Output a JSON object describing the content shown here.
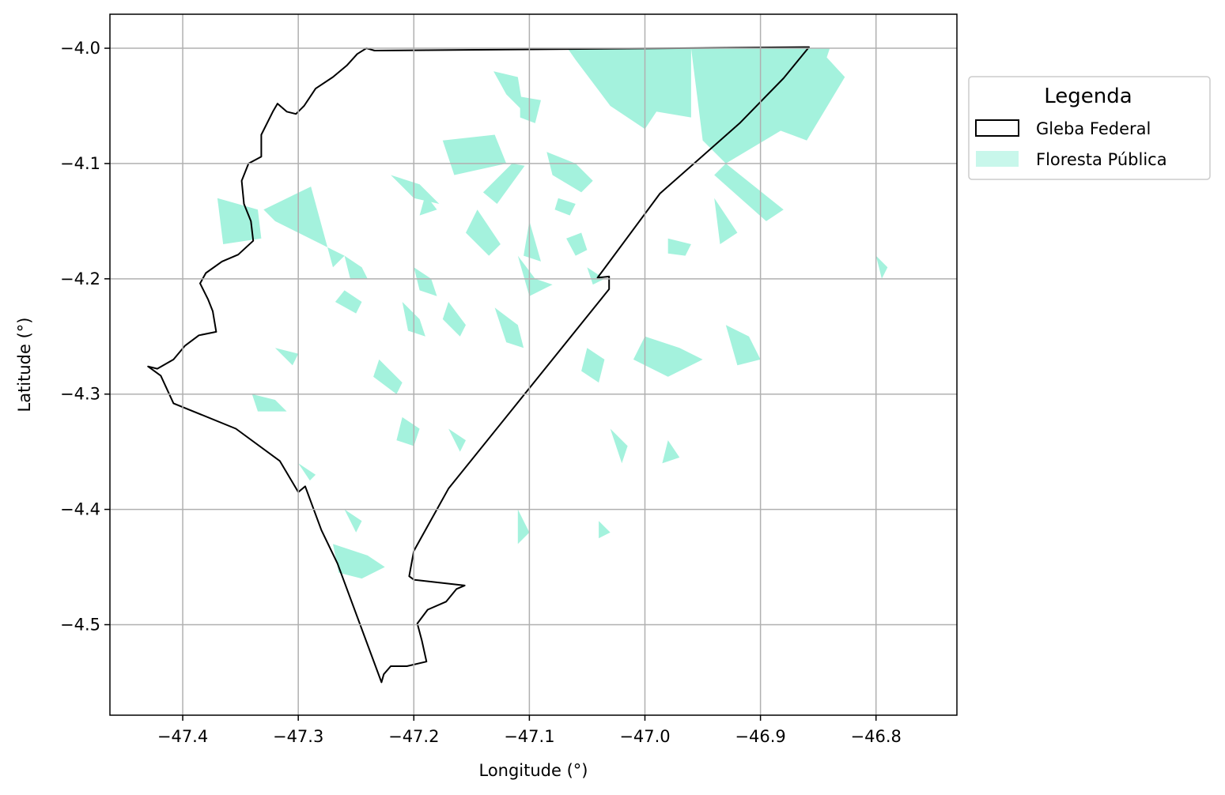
{
  "chart_data": {
    "type": "map",
    "xlabel": "Longitude (°)",
    "ylabel": "Latitude (°)",
    "xlim": [
      -47.463,
      -46.73
    ],
    "ylim": [
      -4.5785,
      -3.9705
    ],
    "x_ticks": [
      -47.4,
      -47.3,
      -47.2,
      -47.1,
      -47.0,
      -46.9,
      -46.8
    ],
    "x_tick_labels": [
      "−47.4",
      "−47.3",
      "−47.2",
      "−47.1",
      "−47.0",
      "−46.9",
      "−46.8"
    ],
    "y_ticks": [
      -4.0,
      -4.1,
      -4.2,
      -4.3,
      -4.4,
      -4.5
    ],
    "y_tick_labels": [
      "−4.0",
      "−4.1",
      "−4.2",
      "−4.3",
      "−4.4",
      "−4.5"
    ],
    "grid": true,
    "legend": {
      "title": "Legenda",
      "placement": "outside right, top",
      "entries": [
        {
          "label": "Gleba Federal",
          "style": "outline",
          "edge_color": "#000000",
          "fill": "none"
        },
        {
          "label": "Floresta Pública",
          "style": "fill",
          "fill_color": "#a4f2dd"
        }
      ]
    },
    "colors": {
      "forest": "#a4f2dd",
      "boundary": "#000000",
      "grid": "#b0b0b0"
    },
    "layers": [
      {
        "name": "Gleba Federal",
        "type": "polygon-outline",
        "coordinates": [
          [
            -47.241,
            -4.0
          ],
          [
            -47.234,
            -4.002
          ],
          [
            -47.1,
            -4.001
          ],
          [
            -46.858,
            -3.999
          ],
          [
            -46.88,
            -4.026
          ],
          [
            -46.918,
            -4.065
          ],
          [
            -46.987,
            -4.126
          ],
          [
            -47.041,
            -4.199
          ],
          [
            -47.031,
            -4.198
          ],
          [
            -47.031,
            -4.209
          ],
          [
            -47.17,
            -4.382
          ],
          [
            -47.2,
            -4.436
          ],
          [
            -47.204,
            -4.458
          ],
          [
            -47.2,
            -4.461
          ],
          [
            -47.156,
            -4.466
          ],
          [
            -47.163,
            -4.469
          ],
          [
            -47.172,
            -4.48
          ],
          [
            -47.188,
            -4.487
          ],
          [
            -47.197,
            -4.499
          ],
          [
            -47.193,
            -4.514
          ],
          [
            -47.189,
            -4.532
          ],
          [
            -47.206,
            -4.536
          ],
          [
            -47.22,
            -4.536
          ],
          [
            -47.226,
            -4.543
          ],
          [
            -47.228,
            -4.55
          ],
          [
            -47.266,
            -4.447
          ],
          [
            -47.28,
            -4.418
          ],
          [
            -47.294,
            -4.38
          ],
          [
            -47.3,
            -4.385
          ],
          [
            -47.316,
            -4.358
          ],
          [
            -47.354,
            -4.33
          ],
          [
            -47.408,
            -4.308
          ],
          [
            -47.419,
            -4.284
          ],
          [
            -47.43,
            -4.276
          ],
          [
            -47.422,
            -4.278
          ],
          [
            -47.408,
            -4.27
          ],
          [
            -47.398,
            -4.258
          ],
          [
            -47.386,
            -4.249
          ],
          [
            -47.371,
            -4.246
          ],
          [
            -47.374,
            -4.228
          ],
          [
            -47.378,
            -4.218
          ],
          [
            -47.385,
            -4.204
          ],
          [
            -47.38,
            -4.195
          ],
          [
            -47.366,
            -4.185
          ],
          [
            -47.352,
            -4.179
          ],
          [
            -47.339,
            -4.167
          ],
          [
            -47.341,
            -4.15
          ],
          [
            -47.347,
            -4.135
          ],
          [
            -47.349,
            -4.115
          ],
          [
            -47.343,
            -4.1
          ],
          [
            -47.332,
            -4.094
          ],
          [
            -47.332,
            -4.075
          ],
          [
            -47.322,
            -4.055
          ],
          [
            -47.318,
            -4.048
          ],
          [
            -47.31,
            -4.055
          ],
          [
            -47.302,
            -4.057
          ],
          [
            -47.295,
            -4.05
          ],
          [
            -47.285,
            -4.035
          ],
          [
            -47.27,
            -4.025
          ],
          [
            -47.258,
            -4.015
          ],
          [
            -47.249,
            -4.005
          ],
          [
            -47.241,
            -4.0
          ]
        ]
      },
      {
        "name": "Floresta Pública",
        "type": "polygon-fill",
        "polygons": [
          [
            [
              -47.067,
              -4.0
            ],
            [
              -46.96,
              -4.0
            ],
            [
              -46.96,
              -4.06
            ],
            [
              -46.99,
              -4.055
            ],
            [
              -47.0,
              -4.07
            ],
            [
              -47.03,
              -4.05
            ],
            [
              -47.06,
              -4.01
            ]
          ],
          [
            [
              -46.96,
              -4.0
            ],
            [
              -46.84,
              -4.0
            ],
            [
              -46.85,
              -4.03
            ],
            [
              -46.88,
              -4.07
            ],
            [
              -46.93,
              -4.1
            ],
            [
              -46.95,
              -4.08
            ]
          ],
          [
            [
              -46.85,
              -4.0
            ],
            [
              -46.827,
              -4.025
            ],
            [
              -46.86,
              -4.08
            ],
            [
              -46.9,
              -4.065
            ],
            [
              -46.875,
              -4.03
            ]
          ],
          [
            [
              -47.131,
              -4.02
            ],
            [
              -47.12,
              -4.04
            ],
            [
              -47.105,
              -4.055
            ],
            [
              -47.11,
              -4.025
            ]
          ],
          [
            [
              -47.108,
              -4.042
            ],
            [
              -47.09,
              -4.045
            ],
            [
              -47.095,
              -4.065
            ],
            [
              -47.108,
              -4.06
            ]
          ],
          [
            [
              -47.175,
              -4.08
            ],
            [
              -47.13,
              -4.075
            ],
            [
              -47.12,
              -4.1
            ],
            [
              -47.165,
              -4.11
            ]
          ],
          [
            [
              -47.085,
              -4.09
            ],
            [
              -47.06,
              -4.1
            ],
            [
              -47.045,
              -4.115
            ],
            [
              -47.055,
              -4.125
            ],
            [
              -47.08,
              -4.11
            ]
          ],
          [
            [
              -47.22,
              -4.11
            ],
            [
              -47.195,
              -4.118
            ],
            [
              -47.178,
              -4.135
            ],
            [
              -47.2,
              -4.13
            ]
          ],
          [
            [
              -47.104,
              -4.102
            ],
            [
              -47.128,
              -4.135
            ],
            [
              -47.14,
              -4.125
            ],
            [
              -47.115,
              -4.1
            ]
          ],
          [
            [
              -47.075,
              -4.13
            ],
            [
              -47.06,
              -4.135
            ],
            [
              -47.065,
              -4.145
            ],
            [
              -47.078,
              -4.14
            ]
          ],
          [
            [
              -47.289,
              -4.12
            ],
            [
              -47.33,
              -4.14
            ],
            [
              -47.32,
              -4.15
            ],
            [
              -47.26,
              -4.18
            ],
            [
              -47.27,
              -4.19
            ]
          ],
          [
            [
              -47.37,
              -4.13
            ],
            [
              -47.335,
              -4.14
            ],
            [
              -47.332,
              -4.165
            ],
            [
              -47.365,
              -4.17
            ]
          ],
          [
            [
              -47.19,
              -4.127
            ],
            [
              -47.18,
              -4.14
            ],
            [
              -47.195,
              -4.145
            ]
          ],
          [
            [
              -47.145,
              -4.14
            ],
            [
              -47.125,
              -4.17
            ],
            [
              -47.135,
              -4.18
            ],
            [
              -47.155,
              -4.16
            ]
          ],
          [
            [
              -47.1,
              -4.15
            ],
            [
              -47.09,
              -4.185
            ],
            [
              -47.105,
              -4.18
            ]
          ],
          [
            [
              -47.055,
              -4.16
            ],
            [
              -47.05,
              -4.175
            ],
            [
              -47.06,
              -4.18
            ],
            [
              -47.068,
              -4.165
            ]
          ],
          [
            [
              -46.93,
              -4.1
            ],
            [
              -46.88,
              -4.14
            ],
            [
              -46.895,
              -4.15
            ],
            [
              -46.94,
              -4.11
            ]
          ],
          [
            [
              -46.94,
              -4.13
            ],
            [
              -46.92,
              -4.16
            ],
            [
              -46.935,
              -4.17
            ]
          ],
          [
            [
              -46.98,
              -4.165
            ],
            [
              -46.96,
              -4.17
            ],
            [
              -46.965,
              -4.18
            ],
            [
              -46.98,
              -4.178
            ]
          ],
          [
            [
              -47.26,
              -4.18
            ],
            [
              -47.245,
              -4.19
            ],
            [
              -47.24,
              -4.2
            ],
            [
              -47.255,
              -4.2
            ]
          ],
          [
            [
              -47.2,
              -4.19
            ],
            [
              -47.185,
              -4.2
            ],
            [
              -47.18,
              -4.215
            ],
            [
              -47.195,
              -4.21
            ]
          ],
          [
            [
              -47.11,
              -4.18
            ],
            [
              -47.095,
              -4.2
            ],
            [
              -47.08,
              -4.205
            ],
            [
              -47.1,
              -4.215
            ]
          ],
          [
            [
              -47.05,
              -4.19
            ],
            [
              -47.035,
              -4.2
            ],
            [
              -47.045,
              -4.205
            ]
          ],
          [
            [
              -47.26,
              -4.21
            ],
            [
              -47.245,
              -4.22
            ],
            [
              -47.25,
              -4.23
            ],
            [
              -47.268,
              -4.22
            ]
          ],
          [
            [
              -47.21,
              -4.22
            ],
            [
              -47.195,
              -4.235
            ],
            [
              -47.19,
              -4.25
            ],
            [
              -47.205,
              -4.245
            ]
          ],
          [
            [
              -47.17,
              -4.22
            ],
            [
              -47.155,
              -4.24
            ],
            [
              -47.16,
              -4.25
            ],
            [
              -47.175,
              -4.235
            ]
          ],
          [
            [
              -47.13,
              -4.225
            ],
            [
              -47.11,
              -4.24
            ],
            [
              -47.105,
              -4.26
            ],
            [
              -47.12,
              -4.255
            ]
          ],
          [
            [
              -47.0,
              -4.25
            ],
            [
              -46.97,
              -4.26
            ],
            [
              -46.95,
              -4.27
            ],
            [
              -46.98,
              -4.285
            ],
            [
              -47.01,
              -4.27
            ]
          ],
          [
            [
              -46.93,
              -4.24
            ],
            [
              -46.91,
              -4.25
            ],
            [
              -46.9,
              -4.27
            ],
            [
              -46.92,
              -4.275
            ]
          ],
          [
            [
              -47.05,
              -4.26
            ],
            [
              -47.035,
              -4.27
            ],
            [
              -47.04,
              -4.29
            ],
            [
              -47.055,
              -4.28
            ]
          ],
          [
            [
              -47.32,
              -4.26
            ],
            [
              -47.3,
              -4.265
            ],
            [
              -47.305,
              -4.275
            ]
          ],
          [
            [
              -47.23,
              -4.27
            ],
            [
              -47.21,
              -4.29
            ],
            [
              -47.215,
              -4.3
            ],
            [
              -47.235,
              -4.285
            ]
          ],
          [
            [
              -47.34,
              -4.3
            ],
            [
              -47.32,
              -4.305
            ],
            [
              -47.31,
              -4.315
            ],
            [
              -47.335,
              -4.315
            ]
          ],
          [
            [
              -47.21,
              -4.32
            ],
            [
              -47.195,
              -4.33
            ],
            [
              -47.2,
              -4.345
            ],
            [
              -47.215,
              -4.34
            ]
          ],
          [
            [
              -47.17,
              -4.33
            ],
            [
              -47.155,
              -4.34
            ],
            [
              -47.16,
              -4.35
            ]
          ],
          [
            [
              -47.03,
              -4.33
            ],
            [
              -47.015,
              -4.345
            ],
            [
              -47.02,
              -4.36
            ]
          ],
          [
            [
              -46.98,
              -4.34
            ],
            [
              -46.97,
              -4.355
            ],
            [
              -46.985,
              -4.36
            ]
          ],
          [
            [
              -47.3,
              -4.36
            ],
            [
              -47.285,
              -4.37
            ],
            [
              -47.29,
              -4.375
            ]
          ],
          [
            [
              -47.27,
              -4.43
            ],
            [
              -47.24,
              -4.44
            ],
            [
              -47.225,
              -4.45
            ],
            [
              -47.245,
              -4.46
            ],
            [
              -47.265,
              -4.455
            ]
          ],
          [
            [
              -47.26,
              -4.4
            ],
            [
              -47.245,
              -4.41
            ],
            [
              -47.25,
              -4.42
            ]
          ],
          [
            [
              -47.11,
              -4.4
            ],
            [
              -47.1,
              -4.42
            ],
            [
              -47.11,
              -4.43
            ]
          ],
          [
            [
              -47.04,
              -4.41
            ],
            [
              -47.03,
              -4.42
            ],
            [
              -47.04,
              -4.425
            ]
          ],
          [
            [
              -46.8,
              -4.18
            ],
            [
              -46.79,
              -4.19
            ],
            [
              -46.795,
              -4.2
            ]
          ]
        ]
      }
    ]
  }
}
